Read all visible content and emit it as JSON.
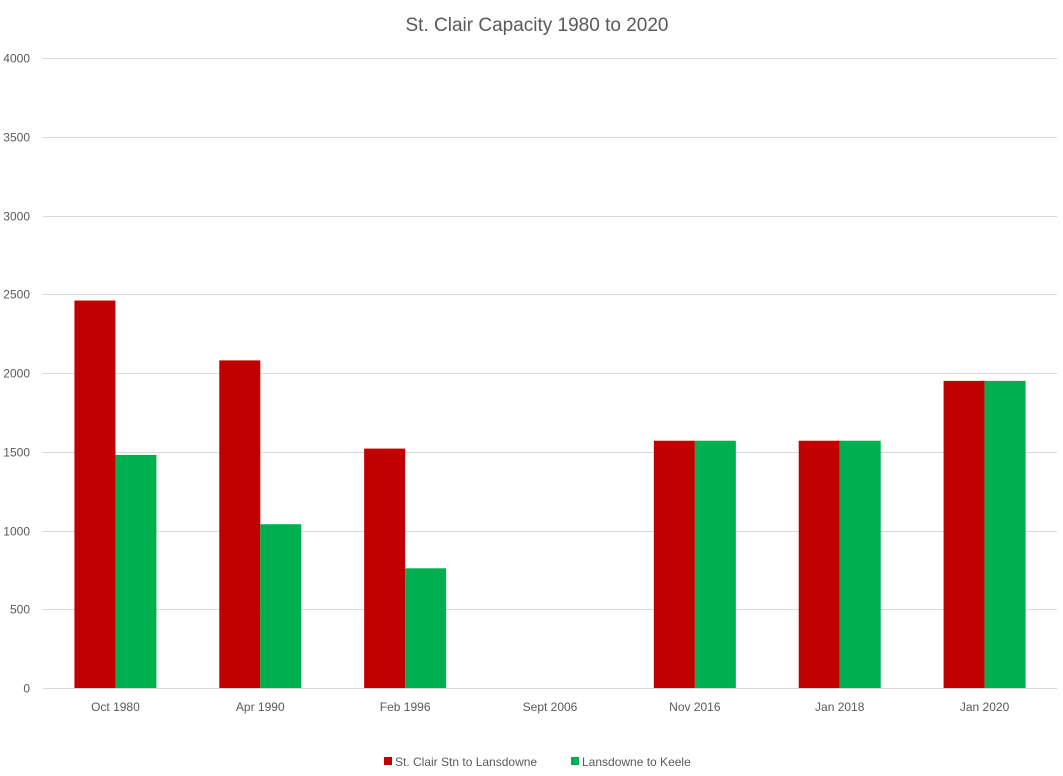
{
  "chart_data": {
    "type": "bar",
    "title": "St. Clair Capacity 1980 to 2020",
    "xlabel": "",
    "ylabel": "",
    "ylim": [
      0,
      4000
    ],
    "yticks": [
      0,
      500,
      1000,
      1500,
      2000,
      2500,
      3000,
      3500,
      4000
    ],
    "grid": true,
    "legend_position": "bottom",
    "categories": [
      "Oct 1980",
      "Apr 1990",
      "Feb 1996",
      "Sept 2006",
      "Nov 2016",
      "Jan 2018",
      "Jan 2020"
    ],
    "series": [
      {
        "name": "St. Clair Stn to Lansdowne",
        "color": "#C00000",
        "values": [
          2460,
          2080,
          1520,
          null,
          1570,
          1570,
          1950
        ]
      },
      {
        "name": "Lansdowne to Keele",
        "color": "#00B050",
        "values": [
          1480,
          1040,
          760,
          null,
          1570,
          1570,
          1950
        ]
      }
    ]
  }
}
